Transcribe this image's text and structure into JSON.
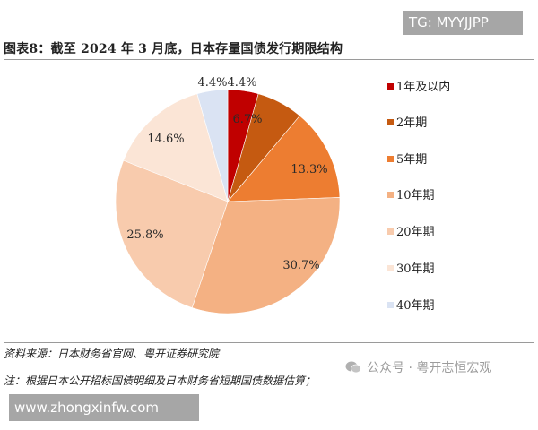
{
  "watermark_top": "TG: MYYJJPP",
  "title": "图表8：截至 2024 年 3 月底，日本存量国债发行期限结构",
  "source": "资料来源：日本财务省官网、粤开证券研究院",
  "note": "注：根据日本公开招标国债明细及日本财务省短期国债数据估算；",
  "wechat_watermark": "公众号 · 粤开志恒宏观",
  "watermark_bottom": "www.zhongxinfw.com",
  "chart_data": {
    "type": "pie",
    "title": "图表8：截至 2024 年 3 月底，日本存量国债发行期限结构",
    "categories": [
      "1年及以内",
      "2年期",
      "5年期",
      "10年期",
      "20年期",
      "30年期",
      "40年期"
    ],
    "values": [
      4.4,
      6.7,
      13.3,
      30.7,
      25.8,
      14.6,
      4.4
    ],
    "labels": [
      "4.4%",
      "6.7%",
      "13.3%",
      "30.7%",
      "25.8%",
      "14.6%",
      "4.4%"
    ],
    "colors": [
      "#c00000",
      "#c55a11",
      "#ed7d31",
      "#f4b183",
      "#f8cbad",
      "#fbe5d6",
      "#dae3f3"
    ],
    "unit": "%",
    "start_angle": "12 o'clock",
    "direction": "clockwise",
    "legend_position": "right"
  },
  "legend": [
    {
      "label": "1年及以内",
      "color": "#c00000"
    },
    {
      "label": "2年期",
      "color": "#c55a11"
    },
    {
      "label": "5年期",
      "color": "#ed7d31"
    },
    {
      "label": "10年期",
      "color": "#f4b183"
    },
    {
      "label": "20年期",
      "color": "#f8cbad"
    },
    {
      "label": "30年期",
      "color": "#fbe5d6"
    },
    {
      "label": "40年期",
      "color": "#dae3f3"
    }
  ]
}
